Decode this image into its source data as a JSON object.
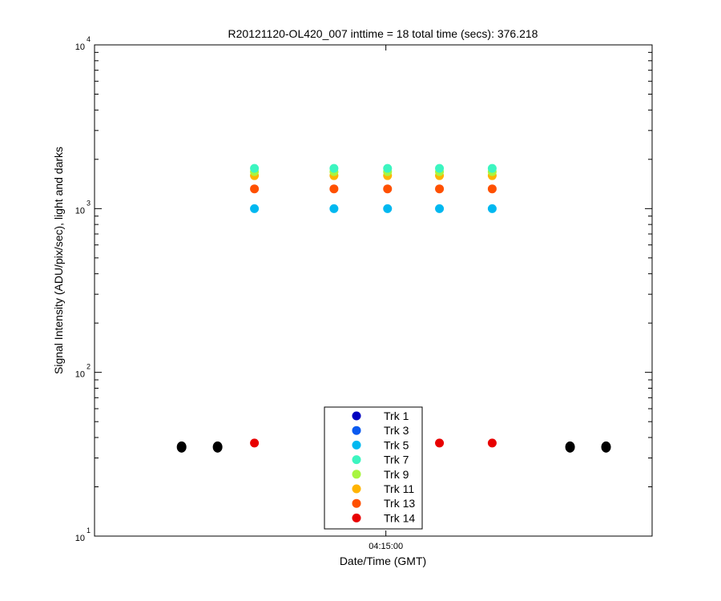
{
  "chart_data": {
    "type": "scatter",
    "title": "R20121120-OL420_007 inttime = 18 total time (secs): 376.218",
    "xlabel": "Date/Time (GMT)",
    "ylabel": "Signal Intensity (ADU/pix/sec), light and darks",
    "x_scale": "time",
    "y_scale": "log",
    "ylim": [
      10,
      10000
    ],
    "xlim": [
      "04:09:12",
      "04:20:18"
    ],
    "x_ticks": [
      {
        "value": "04:15:00",
        "label": "04:15:00"
      }
    ],
    "y_ticks": [
      {
        "base": "10",
        "exp": "1",
        "value": 10
      },
      {
        "base": "10",
        "exp": "2",
        "value": 100
      },
      {
        "base": "10",
        "exp": "3",
        "value": 1000
      },
      {
        "base": "10",
        "exp": "4",
        "value": 10000
      }
    ],
    "grid": false,
    "legend_position": "bottom-center",
    "legend": [
      {
        "name": "Trk 1",
        "color": "#0000c0"
      },
      {
        "name": "Trk 3",
        "color": "#0a5af0"
      },
      {
        "name": "Trk 5",
        "color": "#00b8f0"
      },
      {
        "name": "Trk 7",
        "color": "#3cf5c0"
      },
      {
        "name": "Trk 9",
        "color": "#a8f540"
      },
      {
        "name": "Trk 11",
        "color": "#ffb400"
      },
      {
        "name": "Trk 13",
        "color": "#ff5000"
      },
      {
        "name": "Trk 14",
        "color": "#e80000"
      }
    ],
    "series": [
      {
        "legend_index": 2,
        "color": "#00b8f0",
        "x": [
          "04:12:23",
          "04:13:58",
          "04:15:02",
          "04:16:04",
          "04:17:07"
        ],
        "y": [
          1000,
          1000,
          1000,
          1000,
          1000
        ]
      },
      {
        "legend_index": 7,
        "color": "#e80000",
        "x": [
          "04:12:23",
          "04:13:58",
          "04:15:02",
          "04:16:04",
          "04:17:07"
        ],
        "y": [
          37,
          37,
          37,
          37,
          37
        ]
      },
      {
        "legend_index": 6,
        "color": "#ff5000",
        "x": [
          "04:12:23",
          "04:13:58",
          "04:15:02",
          "04:16:04",
          "04:17:07"
        ],
        "y": [
          1320,
          1320,
          1320,
          1320,
          1320
        ]
      },
      {
        "legend_index": 5,
        "color": "#ffb400",
        "x": [
          "04:12:23",
          "04:13:58",
          "04:15:02",
          "04:16:04",
          "04:17:07"
        ],
        "y": [
          1590,
          1590,
          1590,
          1590,
          1590
        ]
      },
      {
        "legend_index": 4,
        "color": "#a8f540",
        "x": [
          "04:12:23",
          "04:13:58",
          "04:15:02",
          "04:16:04",
          "04:17:07"
        ],
        "y": [
          1680,
          1680,
          1680,
          1680,
          1680
        ]
      },
      {
        "legend_index": 3,
        "color": "#3cf5c0",
        "x": [
          "04:12:23",
          "04:13:58",
          "04:15:02",
          "04:16:04",
          "04:17:07"
        ],
        "y": [
          1760,
          1760,
          1760,
          1760,
          1760
        ]
      },
      {
        "legend_index": null,
        "color": "#000000",
        "x": [
          "04:10:56",
          "04:11:39",
          "04:18:40",
          "04:19:23"
        ],
        "y": [
          35,
          35,
          35,
          35
        ]
      }
    ]
  }
}
